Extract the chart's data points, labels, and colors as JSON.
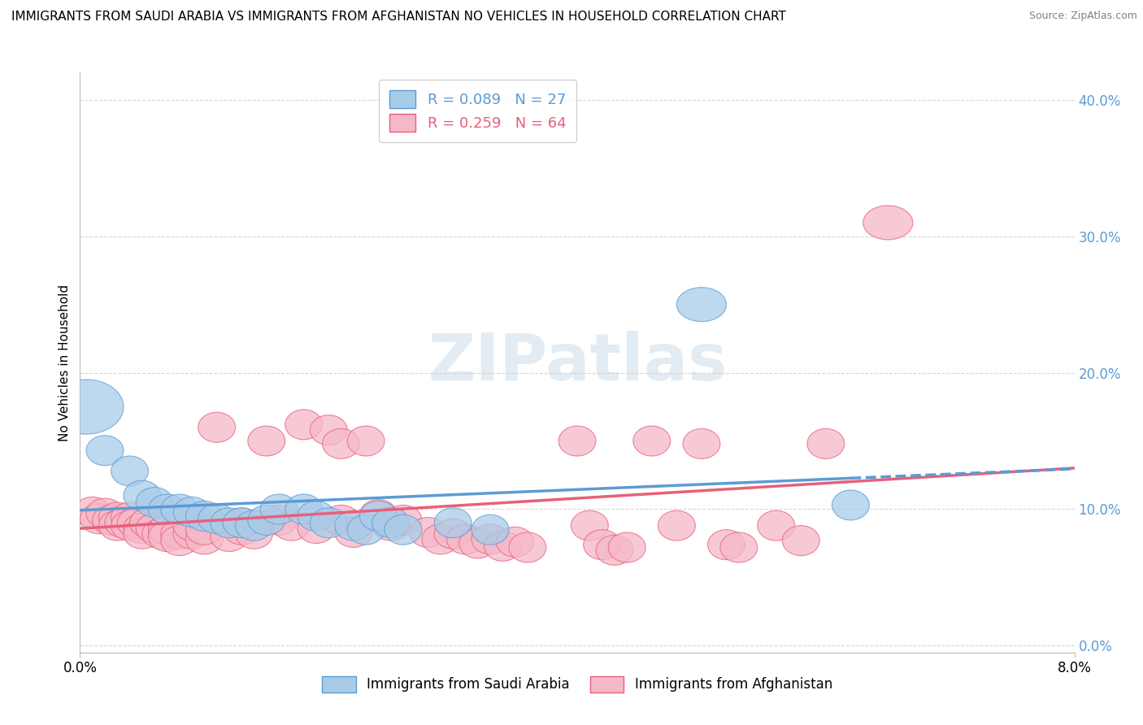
{
  "title": "IMMIGRANTS FROM SAUDI ARABIA VS IMMIGRANTS FROM AFGHANISTAN NO VEHICLES IN HOUSEHOLD CORRELATION CHART",
  "source": "Source: ZipAtlas.com",
  "ylabel": "No Vehicles in Household",
  "xlim": [
    0.0,
    0.08
  ],
  "ylim": [
    -0.005,
    0.42
  ],
  "yticks": [
    0.0,
    0.1,
    0.2,
    0.3,
    0.4
  ],
  "blue_R": "0.089",
  "blue_N": "27",
  "pink_R": "0.259",
  "pink_N": "64",
  "blue_fill": "#A8CCE8",
  "pink_fill": "#F5B8C8",
  "blue_edge": "#5B9BD5",
  "pink_edge": "#E8607A",
  "watermark": "ZIPatlas",
  "label_saudi": "Immigrants from Saudi Arabia",
  "label_afghan": "Immigrants from Afghanistan",
  "saudi_points": [
    [
      0.0005,
      0.175
    ],
    [
      0.002,
      0.143
    ],
    [
      0.004,
      0.128
    ],
    [
      0.005,
      0.11
    ],
    [
      0.006,
      0.105
    ],
    [
      0.007,
      0.1
    ],
    [
      0.008,
      0.1
    ],
    [
      0.009,
      0.098
    ],
    [
      0.01,
      0.095
    ],
    [
      0.011,
      0.093
    ],
    [
      0.012,
      0.09
    ],
    [
      0.013,
      0.09
    ],
    [
      0.014,
      0.088
    ],
    [
      0.015,
      0.092
    ],
    [
      0.016,
      0.1
    ],
    [
      0.018,
      0.1
    ],
    [
      0.019,
      0.095
    ],
    [
      0.02,
      0.09
    ],
    [
      0.022,
      0.088
    ],
    [
      0.023,
      0.085
    ],
    [
      0.024,
      0.095
    ],
    [
      0.025,
      0.09
    ],
    [
      0.026,
      0.085
    ],
    [
      0.03,
      0.09
    ],
    [
      0.033,
      0.085
    ],
    [
      0.05,
      0.25
    ],
    [
      0.062,
      0.103
    ]
  ],
  "saudi_widths": [
    0.006,
    0.003,
    0.003,
    0.003,
    0.003,
    0.003,
    0.003,
    0.003,
    0.003,
    0.003,
    0.003,
    0.003,
    0.003,
    0.003,
    0.003,
    0.003,
    0.003,
    0.003,
    0.003,
    0.003,
    0.003,
    0.003,
    0.003,
    0.003,
    0.003,
    0.004,
    0.003
  ],
  "saudi_heights": [
    0.04,
    0.022,
    0.022,
    0.022,
    0.022,
    0.022,
    0.022,
    0.022,
    0.022,
    0.022,
    0.022,
    0.022,
    0.022,
    0.022,
    0.022,
    0.022,
    0.022,
    0.022,
    0.022,
    0.022,
    0.022,
    0.022,
    0.022,
    0.022,
    0.022,
    0.025,
    0.022
  ],
  "afghan_points": [
    [
      0.001,
      0.098
    ],
    [
      0.0015,
      0.093
    ],
    [
      0.002,
      0.097
    ],
    [
      0.0025,
      0.092
    ],
    [
      0.003,
      0.094
    ],
    [
      0.003,
      0.088
    ],
    [
      0.0035,
      0.09
    ],
    [
      0.004,
      0.094
    ],
    [
      0.004,
      0.088
    ],
    [
      0.0045,
      0.09
    ],
    [
      0.005,
      0.086
    ],
    [
      0.005,
      0.082
    ],
    [
      0.0055,
      0.09
    ],
    [
      0.006,
      0.086
    ],
    [
      0.0065,
      0.082
    ],
    [
      0.007,
      0.085
    ],
    [
      0.007,
      0.08
    ],
    [
      0.008,
      0.082
    ],
    [
      0.008,
      0.077
    ],
    [
      0.009,
      0.082
    ],
    [
      0.009,
      0.088
    ],
    [
      0.01,
      0.078
    ],
    [
      0.01,
      0.085
    ],
    [
      0.011,
      0.16
    ],
    [
      0.012,
      0.08
    ],
    [
      0.013,
      0.09
    ],
    [
      0.013,
      0.085
    ],
    [
      0.014,
      0.082
    ],
    [
      0.015,
      0.15
    ],
    [
      0.016,
      0.092
    ],
    [
      0.017,
      0.088
    ],
    [
      0.018,
      0.162
    ],
    [
      0.019,
      0.086
    ],
    [
      0.02,
      0.158
    ],
    [
      0.021,
      0.148
    ],
    [
      0.021,
      0.092
    ],
    [
      0.022,
      0.083
    ],
    [
      0.023,
      0.15
    ],
    [
      0.024,
      0.096
    ],
    [
      0.025,
      0.088
    ],
    [
      0.026,
      0.092
    ],
    [
      0.028,
      0.083
    ],
    [
      0.029,
      0.078
    ],
    [
      0.03,
      0.082
    ],
    [
      0.031,
      0.078
    ],
    [
      0.032,
      0.075
    ],
    [
      0.033,
      0.078
    ],
    [
      0.034,
      0.073
    ],
    [
      0.035,
      0.076
    ],
    [
      0.036,
      0.072
    ],
    [
      0.04,
      0.15
    ],
    [
      0.041,
      0.088
    ],
    [
      0.042,
      0.074
    ],
    [
      0.043,
      0.07
    ],
    [
      0.044,
      0.072
    ],
    [
      0.046,
      0.15
    ],
    [
      0.048,
      0.088
    ],
    [
      0.05,
      0.148
    ],
    [
      0.052,
      0.074
    ],
    [
      0.053,
      0.072
    ],
    [
      0.056,
      0.088
    ],
    [
      0.058,
      0.077
    ],
    [
      0.06,
      0.148
    ],
    [
      0.065,
      0.31
    ]
  ],
  "afghan_widths": [
    0.003,
    0.003,
    0.003,
    0.003,
    0.003,
    0.003,
    0.003,
    0.003,
    0.003,
    0.003,
    0.003,
    0.003,
    0.003,
    0.003,
    0.003,
    0.003,
    0.003,
    0.003,
    0.003,
    0.003,
    0.003,
    0.003,
    0.003,
    0.003,
    0.003,
    0.003,
    0.003,
    0.003,
    0.003,
    0.003,
    0.003,
    0.003,
    0.003,
    0.003,
    0.003,
    0.003,
    0.003,
    0.003,
    0.003,
    0.003,
    0.003,
    0.003,
    0.003,
    0.003,
    0.003,
    0.003,
    0.003,
    0.003,
    0.003,
    0.003,
    0.003,
    0.003,
    0.003,
    0.003,
    0.003,
    0.003,
    0.003,
    0.003,
    0.003,
    0.003,
    0.003,
    0.003,
    0.003,
    0.004
  ],
  "afghan_heights": [
    0.022,
    0.022,
    0.022,
    0.022,
    0.022,
    0.022,
    0.022,
    0.022,
    0.022,
    0.022,
    0.022,
    0.022,
    0.022,
    0.022,
    0.022,
    0.022,
    0.022,
    0.022,
    0.022,
    0.022,
    0.022,
    0.022,
    0.022,
    0.022,
    0.022,
    0.022,
    0.022,
    0.022,
    0.022,
    0.022,
    0.022,
    0.022,
    0.022,
    0.022,
    0.022,
    0.022,
    0.022,
    0.022,
    0.022,
    0.022,
    0.022,
    0.022,
    0.022,
    0.022,
    0.022,
    0.022,
    0.022,
    0.022,
    0.022,
    0.022,
    0.022,
    0.022,
    0.022,
    0.022,
    0.022,
    0.022,
    0.022,
    0.022,
    0.022,
    0.022,
    0.022,
    0.022,
    0.022,
    0.025
  ]
}
